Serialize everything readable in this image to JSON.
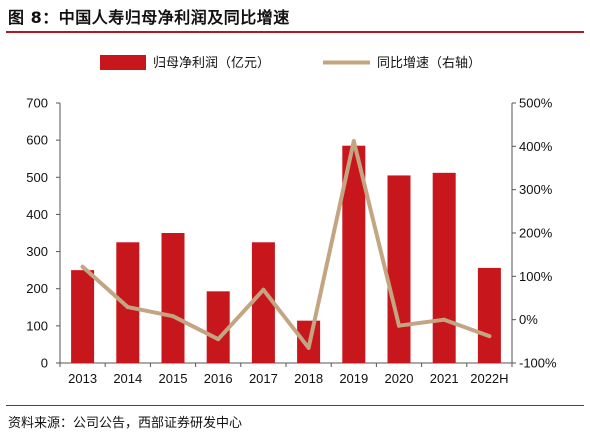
{
  "figure_title": "图 8：中国人寿归母净利润及同比增速",
  "source_note": "资料来源：公司公告，西部证券研发中心",
  "colors": {
    "bar": "#c8161d",
    "line": "#c4a582",
    "rule": "#b0171f",
    "axis": "#555555"
  },
  "chart_data": {
    "type": "bar",
    "title": "",
    "categories": [
      "2013",
      "2014",
      "2015",
      "2016",
      "2017",
      "2018",
      "2019",
      "2020",
      "2021",
      "2022H"
    ],
    "series": [
      {
        "name": "归母净利润（亿元）",
        "type": "bar",
        "axis": "left",
        "values": [
          250,
          325,
          350,
          193,
          325,
          114,
          585,
          505,
          512,
          256
        ]
      },
      {
        "name": "同比增速（右轴）",
        "type": "line",
        "axis": "right",
        "values": [
          1.22,
          0.29,
          0.08,
          -0.45,
          0.69,
          -0.65,
          4.12,
          -0.14,
          0.0,
          -0.38
        ]
      }
    ],
    "ylim_left": [
      0,
      700
    ],
    "yticks_left": [
      "0",
      "100",
      "200",
      "300",
      "400",
      "500",
      "600",
      "700"
    ],
    "ylim_right": [
      -1.0,
      5.0
    ],
    "yticks_right": [
      "-100%",
      "0%",
      "100%",
      "200%",
      "300%",
      "400%",
      "500%"
    ],
    "grid": false,
    "legend_position": "top-center"
  }
}
